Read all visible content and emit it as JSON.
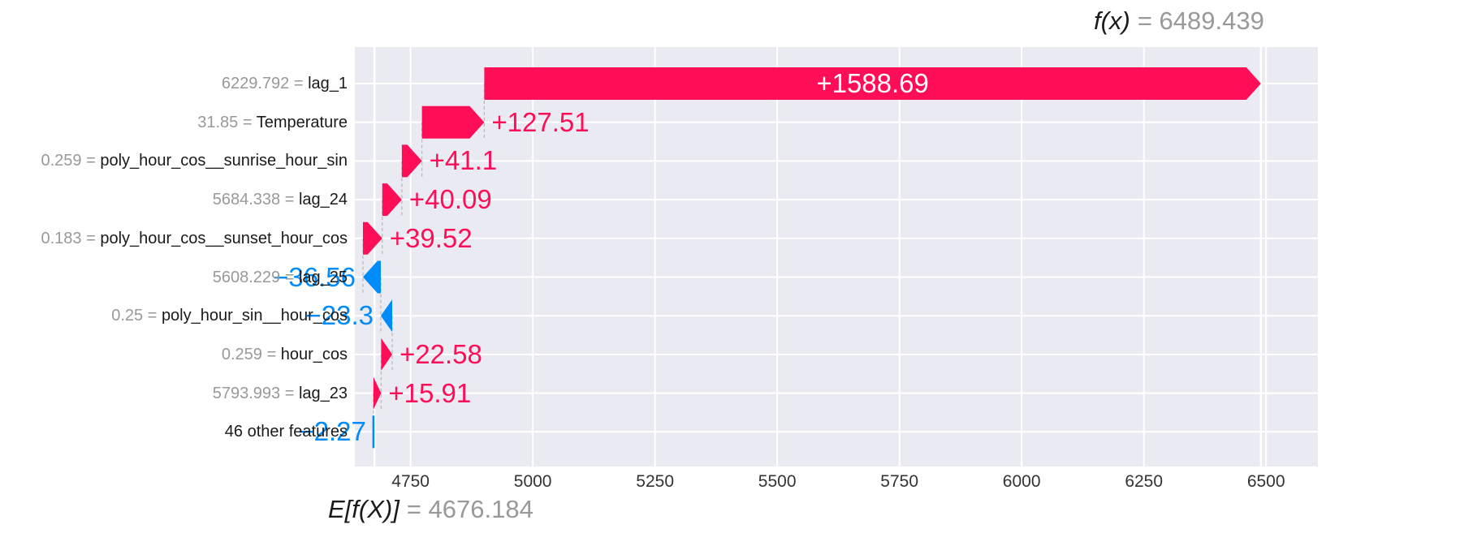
{
  "header": {
    "fx_label": "f(x)",
    "fx_value": "= 6489.439"
  },
  "footer": {
    "ef_label": "E[f(X)]",
    "ef_value": "= 4676.184"
  },
  "chart_data": {
    "type": "waterfall",
    "description": "SHAP waterfall plot of feature contributions",
    "base_value": 4676.184,
    "fx_value": 6489.439,
    "xlim": [
      4636,
      6606
    ],
    "xticks": [
      "4750",
      "5000",
      "5250",
      "5500",
      "5750",
      "6000",
      "6250",
      "6500"
    ],
    "grid": true,
    "colors": {
      "positive": "#ff0d57",
      "negative": "#008bfb",
      "plot_bg": "#eaeaf2",
      "grid": "#ffffff",
      "muted": "#999999",
      "text": "#1a1a1a",
      "connector": "#bbbbbb",
      "inside_label": "#ffffff"
    },
    "rows": [
      {
        "feature": "lag_1",
        "data_value": "6229.792",
        "contribution": 1588.69,
        "label": "+1588.69",
        "label_placement": "inside"
      },
      {
        "feature": "Temperature",
        "data_value": "31.85",
        "contribution": 127.51,
        "label": "+127.51",
        "label_placement": "outside"
      },
      {
        "feature": "poly_hour_cos__sunrise_hour_sin",
        "data_value": "0.259",
        "contribution": 41.1,
        "label": "+41.1",
        "label_placement": "outside"
      },
      {
        "feature": "lag_24",
        "data_value": "5684.338",
        "contribution": 40.09,
        "label": "+40.09",
        "label_placement": "outside"
      },
      {
        "feature": "poly_hour_cos__sunset_hour_cos",
        "data_value": "0.183",
        "contribution": 39.52,
        "label": "+39.52",
        "label_placement": "outside"
      },
      {
        "feature": "lag_25",
        "data_value": "5608.229",
        "contribution": -36.56,
        "label": "−36.56",
        "label_placement": "outside"
      },
      {
        "feature": "poly_hour_sin__hour_cos",
        "data_value": "0.25",
        "contribution": -23.3,
        "label": "−23.3",
        "label_placement": "outside"
      },
      {
        "feature": "hour_cos",
        "data_value": "0.259",
        "contribution": 22.58,
        "label": "+22.58",
        "label_placement": "outside"
      },
      {
        "feature": "lag_23",
        "data_value": "5793.993",
        "contribution": 15.91,
        "label": "+15.91",
        "label_placement": "outside"
      },
      {
        "feature": "46 other features",
        "data_value": null,
        "contribution": -2.27,
        "label": "−2.27",
        "label_placement": "outside"
      }
    ]
  }
}
